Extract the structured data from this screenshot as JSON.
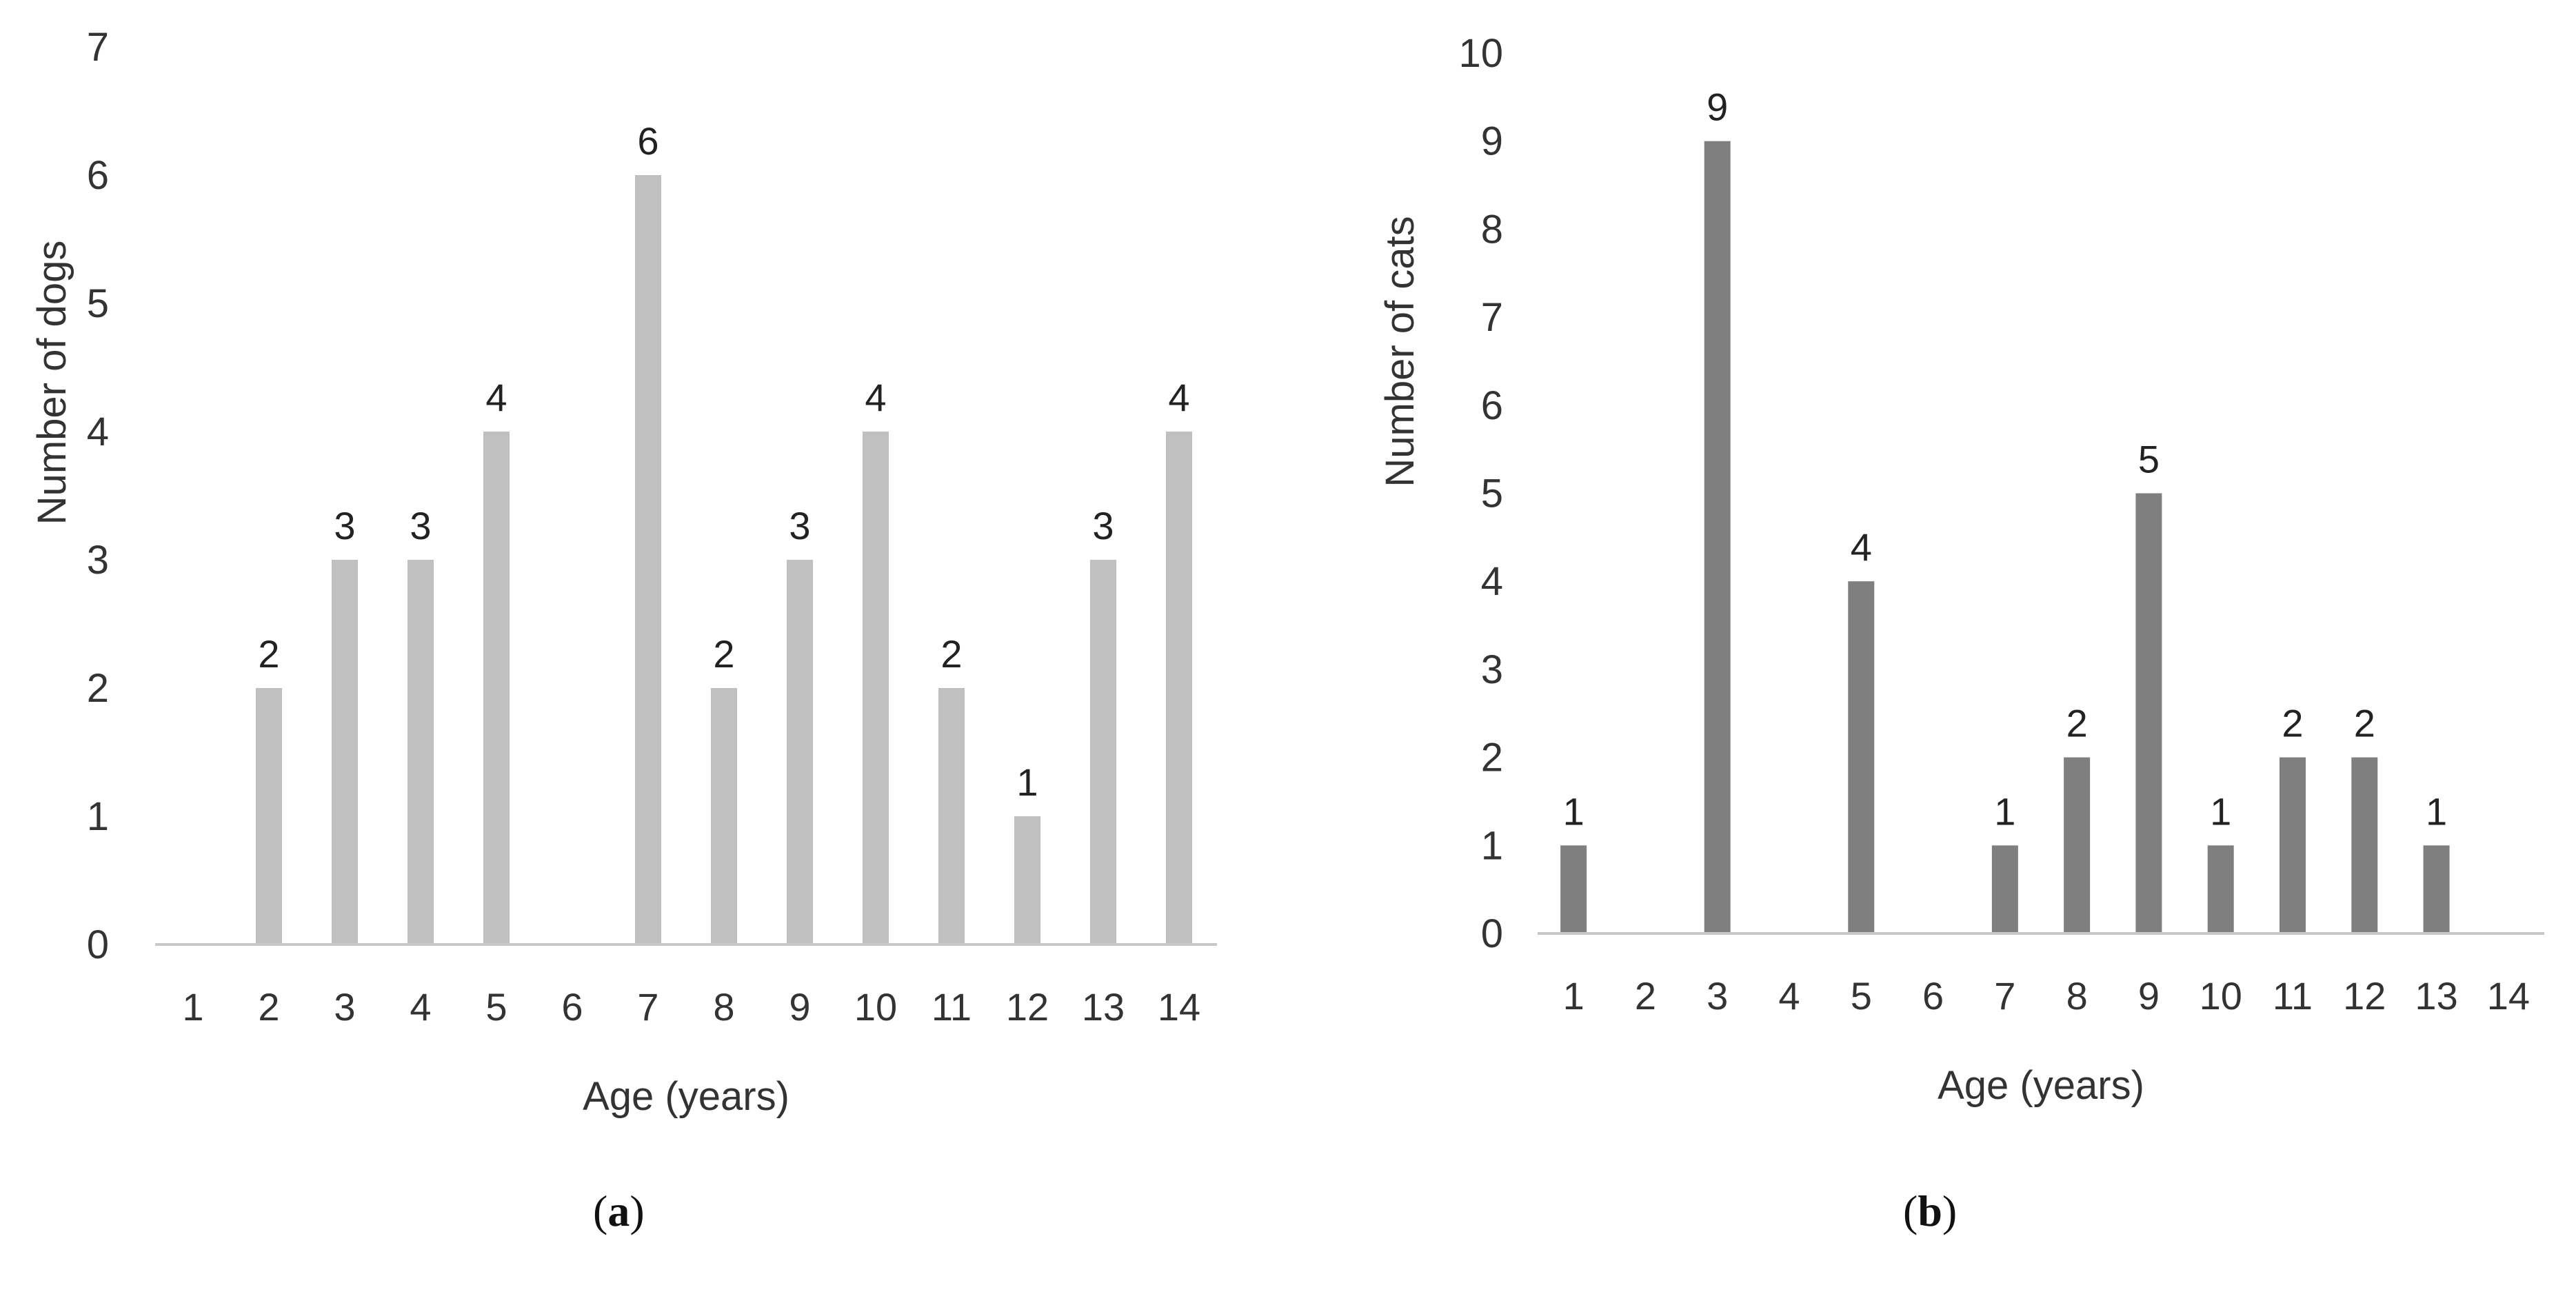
{
  "chart_data": [
    {
      "type": "bar",
      "panel_label": "a",
      "categories": [
        "1",
        "2",
        "3",
        "4",
        "5",
        "6",
        "7",
        "8",
        "9",
        "10",
        "11",
        "12",
        "13",
        "14"
      ],
      "values": [
        0,
        2,
        3,
        3,
        4,
        0,
        6,
        2,
        3,
        4,
        2,
        1,
        3,
        4
      ],
      "data_labels": [
        "",
        "2",
        "3",
        "3",
        "4",
        "",
        "6",
        "2",
        "3",
        "4",
        "2",
        "1",
        "3",
        "4"
      ],
      "ylabel": "Number of dogs",
      "xlabel": "Age (years)",
      "ylim": [
        0,
        7
      ],
      "yticks": [
        "0",
        "1",
        "2",
        "3",
        "4",
        "5",
        "6",
        "7"
      ],
      "bar_color": "#c0c0c0",
      "grid": false,
      "legend": "none"
    },
    {
      "type": "bar",
      "panel_label": "b",
      "categories": [
        "1",
        "2",
        "3",
        "4",
        "5",
        "6",
        "7",
        "8",
        "9",
        "10",
        "11",
        "12",
        "13",
        "14"
      ],
      "values": [
        1,
        0,
        9,
        0,
        4,
        0,
        1,
        2,
        5,
        1,
        2,
        2,
        1,
        0
      ],
      "data_labels": [
        "1",
        "",
        "9",
        "",
        "4",
        "",
        "1",
        "2",
        "5",
        "1",
        "2",
        "2",
        "1",
        ""
      ],
      "ylabel": "Number of cats",
      "xlabel": "Age (years)",
      "ylim": [
        0,
        10
      ],
      "yticks": [
        "0",
        "1",
        "2",
        "3",
        "4",
        "5",
        "6",
        "7",
        "8",
        "9",
        "10"
      ],
      "bar_color": "#7f7f7f",
      "grid": false,
      "legend": "none"
    }
  ]
}
